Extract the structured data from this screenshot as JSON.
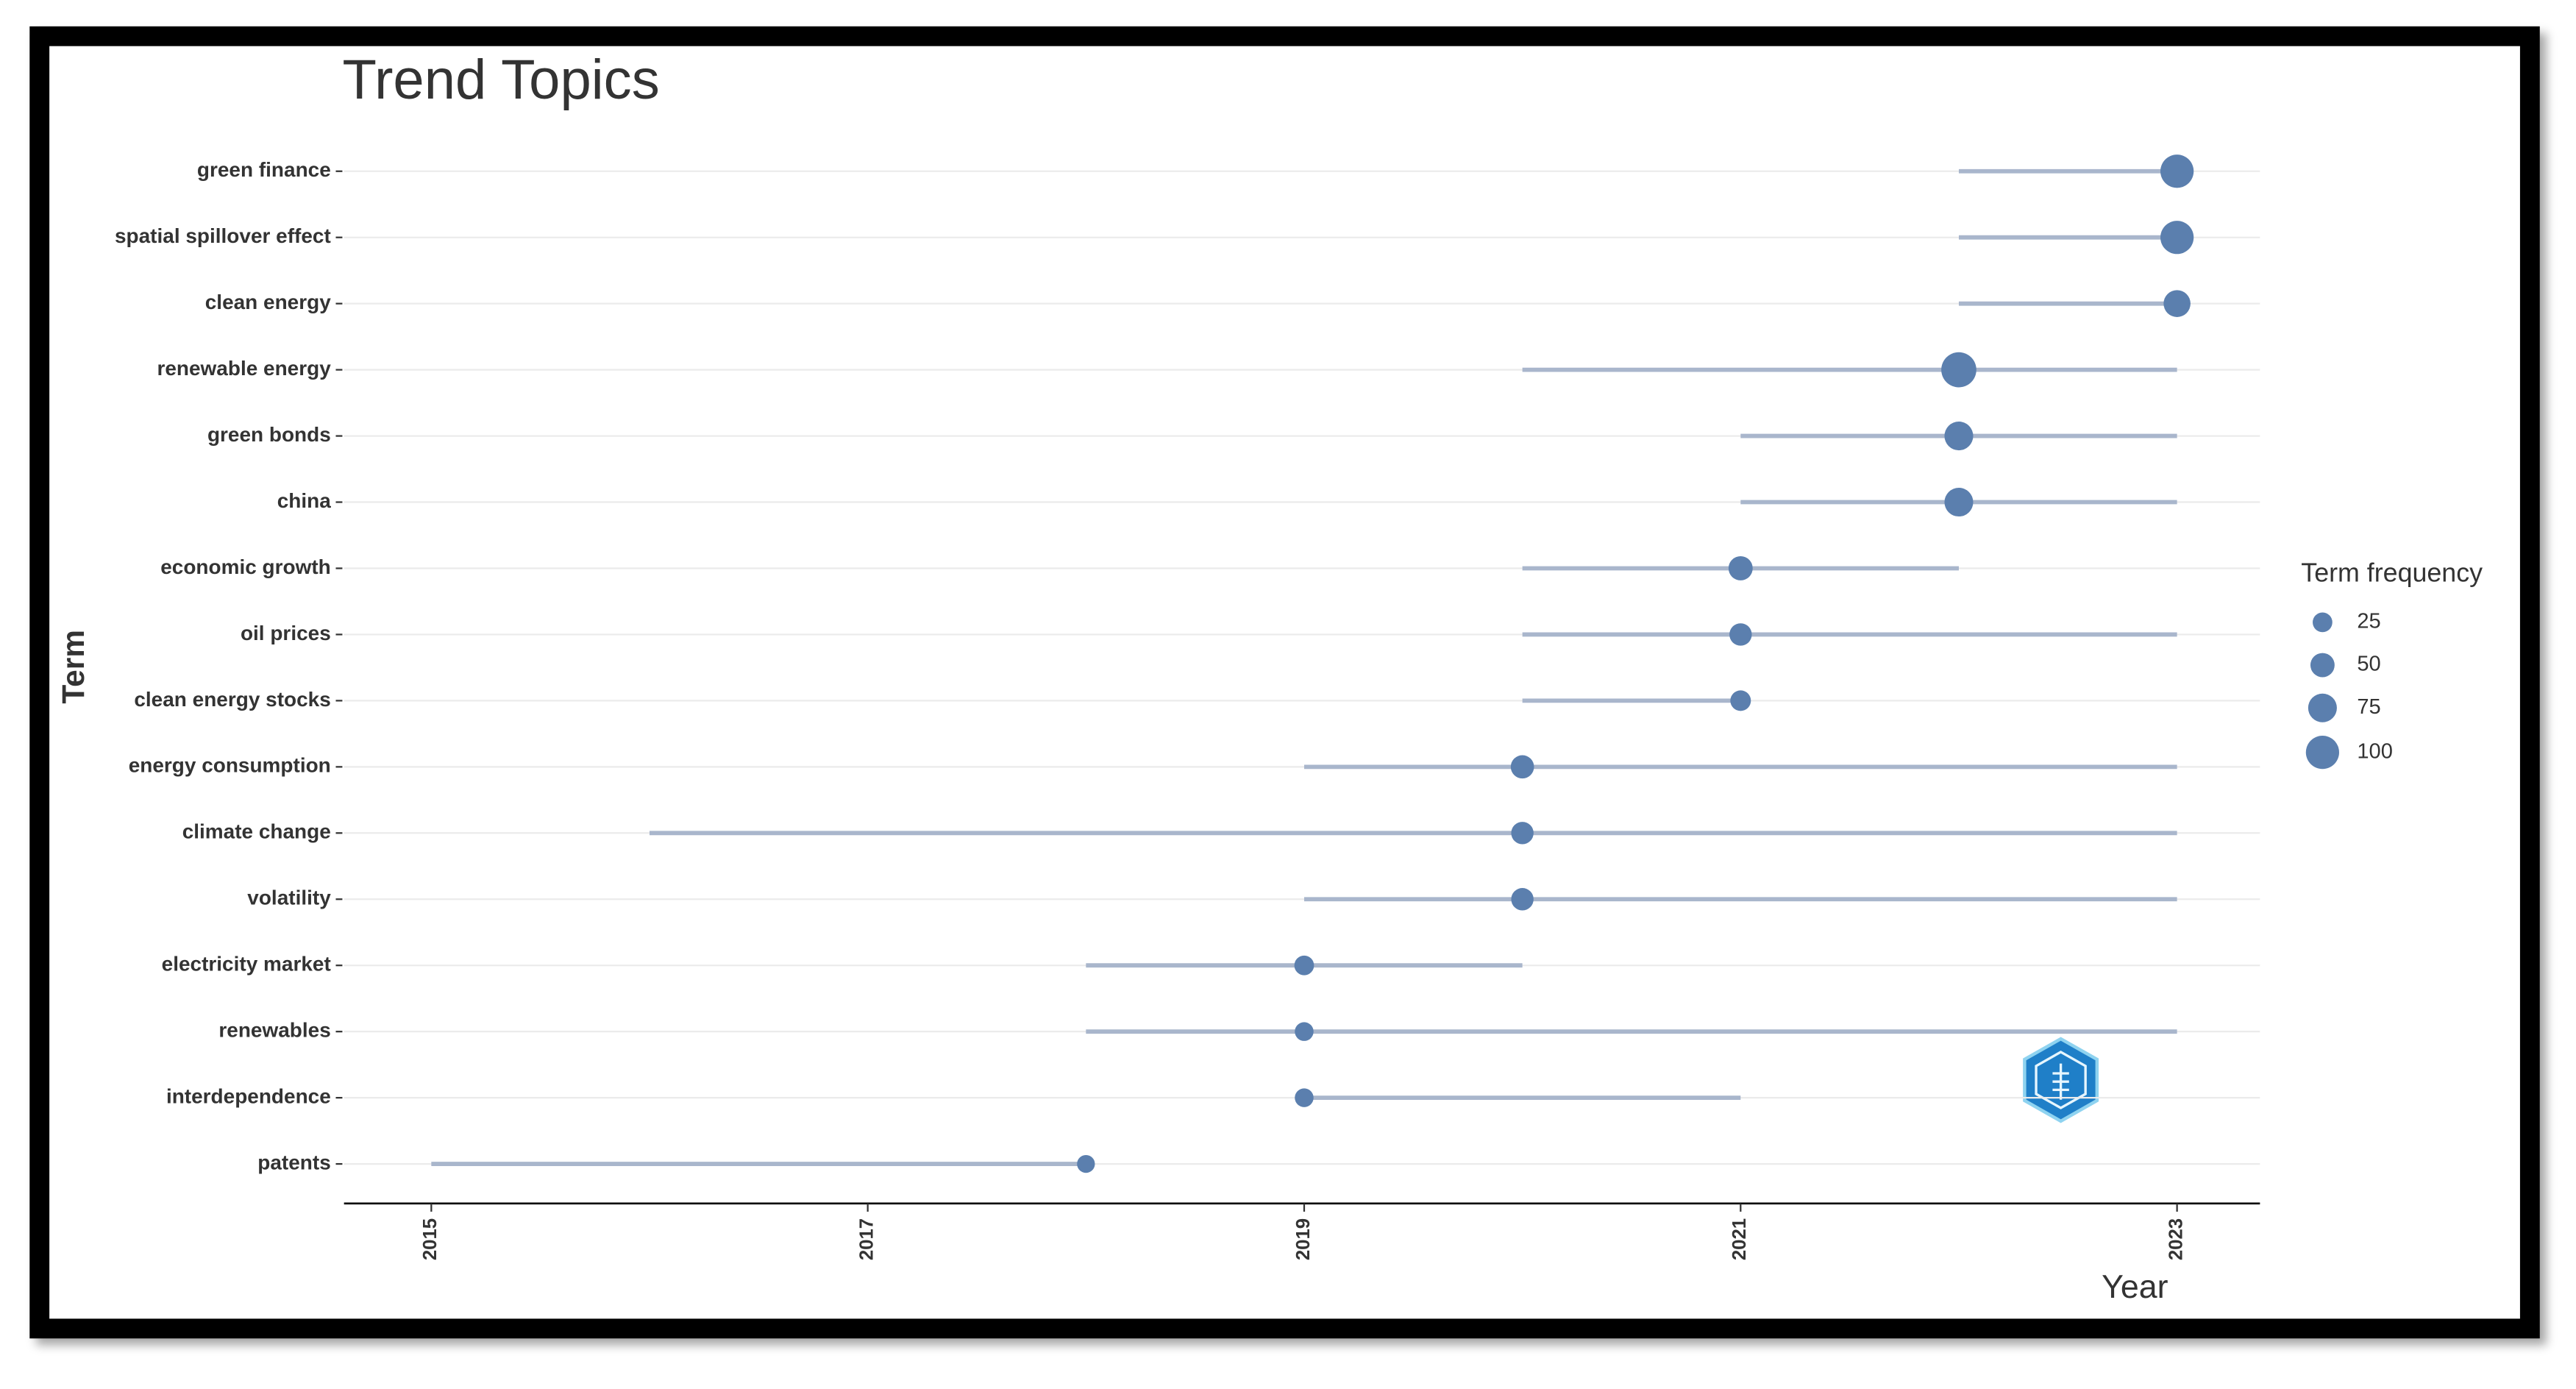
{
  "chart_data": {
    "type": "trend",
    "title": "Trend Topics",
    "x_label": "Year",
    "y_label": "Term",
    "categories": [
      "green finance",
      "spatial spillover effect",
      "clean energy",
      "renewable energy",
      "green bonds",
      "china",
      "economic growth",
      "oil prices",
      "clean energy stocks",
      "energy consumption",
      "climate change",
      "volatility",
      "electricity market",
      "renewables",
      "interdependence",
      "patents"
    ],
    "year_q1": [
      2022,
      2022,
      2022,
      2020,
      2021,
      2021,
      2020,
      2020,
      2020,
      2019,
      2016,
      2019,
      2018,
      2018,
      2019,
      2015
    ],
    "year_median": [
      2023,
      2023,
      2023,
      2022,
      2022,
      2022,
      2021,
      2021,
      2021,
      2020,
      2020,
      2020,
      2019,
      2019,
      2019,
      2018
    ],
    "year_q3": [
      2023,
      2023,
      2023,
      2023,
      2023,
      2023,
      2022,
      2023,
      2021,
      2023,
      2023,
      2023,
      2020,
      2023,
      2021,
      2018
    ],
    "frequency": [
      100,
      100,
      65,
      110,
      75,
      75,
      50,
      40,
      30,
      45,
      40,
      40,
      25,
      20,
      20,
      15
    ],
    "point_color": "#5b7fae",
    "line_color": "#a9b6cc",
    "xlim": [
      2014.6,
      2023.38
    ],
    "xticks": [
      2015,
      2017,
      2019,
      2021,
      2023
    ],
    "grid": true,
    "size_legend": {
      "title": "Term frequency",
      "values": [
        25,
        50,
        75,
        100
      ]
    }
  }
}
